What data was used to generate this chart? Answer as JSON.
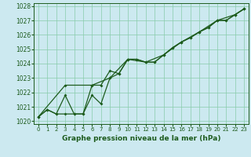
{
  "title": "Graphe pression niveau de la mer (hPa)",
  "xlim": [
    -0.5,
    23.5
  ],
  "ylim": [
    1019.8,
    1028.2
  ],
  "xticks": [
    0,
    1,
    2,
    3,
    4,
    5,
    6,
    7,
    8,
    9,
    10,
    11,
    12,
    13,
    14,
    15,
    16,
    17,
    18,
    19,
    20,
    21,
    22,
    23
  ],
  "yticks": [
    1020,
    1021,
    1022,
    1023,
    1024,
    1025,
    1026,
    1027,
    1028
  ],
  "background_color": "#cce9f0",
  "grid_color": "#88ccaa",
  "line_color": "#1e5c1e",
  "series1": [
    [
      0.0,
      1020.3
    ],
    [
      1.0,
      1020.8
    ],
    [
      2.0,
      1020.5
    ],
    [
      3.0,
      1020.5
    ],
    [
      4.0,
      1020.5
    ],
    [
      5.0,
      1020.5
    ],
    [
      6.0,
      1021.8
    ],
    [
      7.0,
      1021.2
    ],
    [
      8.0,
      1023.0
    ],
    [
      9.0,
      1023.3
    ],
    [
      10.0,
      1024.3
    ],
    [
      11.0,
      1024.3
    ],
    [
      12.0,
      1024.1
    ],
    [
      13.0,
      1024.1
    ],
    [
      14.0,
      1024.6
    ],
    [
      15.0,
      1025.1
    ],
    [
      16.0,
      1025.5
    ],
    [
      17.0,
      1025.8
    ],
    [
      18.0,
      1026.2
    ],
    [
      19.0,
      1026.5
    ],
    [
      20.0,
      1027.0
    ],
    [
      21.0,
      1027.0
    ],
    [
      22.0,
      1027.4
    ],
    [
      23.0,
      1027.8
    ]
  ],
  "series2": [
    [
      0.0,
      1020.3
    ],
    [
      1.0,
      1020.8
    ],
    [
      2.0,
      1020.5
    ],
    [
      3.0,
      1021.8
    ],
    [
      4.0,
      1020.5
    ],
    [
      5.0,
      1020.5
    ],
    [
      6.0,
      1022.5
    ],
    [
      7.0,
      1022.5
    ],
    [
      8.0,
      1023.5
    ],
    [
      9.0,
      1023.3
    ],
    [
      10.0,
      1024.3
    ],
    [
      11.0,
      1024.3
    ],
    [
      12.0,
      1024.1
    ],
    [
      13.0,
      1024.1
    ],
    [
      14.0,
      1024.6
    ],
    [
      15.0,
      1025.1
    ],
    [
      16.0,
      1025.5
    ],
    [
      17.0,
      1025.8
    ],
    [
      18.0,
      1026.2
    ],
    [
      19.0,
      1026.5
    ],
    [
      20.0,
      1027.0
    ],
    [
      21.0,
      1027.0
    ],
    [
      22.0,
      1027.4
    ],
    [
      23.0,
      1027.8
    ]
  ],
  "series3": [
    [
      0.0,
      1020.3
    ],
    [
      3.0,
      1022.5
    ],
    [
      6.0,
      1022.5
    ],
    [
      8.0,
      1023.0
    ],
    [
      10.0,
      1024.3
    ],
    [
      12.0,
      1024.1
    ],
    [
      14.0,
      1024.6
    ],
    [
      16.0,
      1025.5
    ],
    [
      18.0,
      1026.2
    ],
    [
      20.0,
      1027.0
    ],
    [
      22.0,
      1027.4
    ],
    [
      23.0,
      1027.8
    ]
  ],
  "tick_fontsize": 5,
  "label_fontsize": 6.5,
  "linewidth": 0.9,
  "markersize": 2.0
}
